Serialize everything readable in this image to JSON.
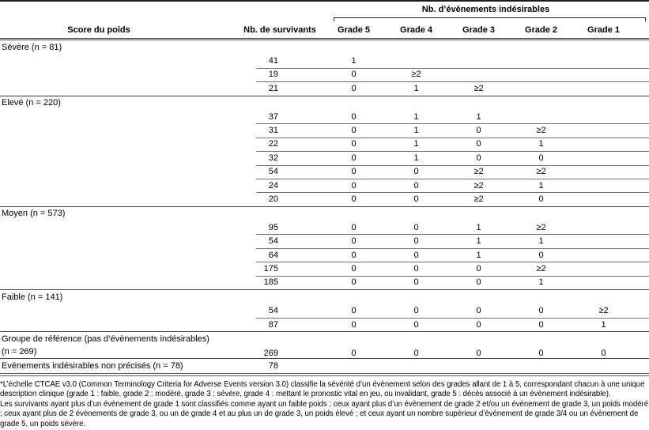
{
  "table": {
    "spanner_title": "Nb. d’évènements indésirables",
    "columns": {
      "score": "Score du poids",
      "survivors": "Nb. de survivants",
      "grades": [
        "Grade 5",
        "Grade 4",
        "Grade 3",
        "Grade 2",
        "Grade 1"
      ]
    },
    "sections": [
      {
        "label": "Sévère (n = 81)",
        "rows": [
          {
            "survivors": "41",
            "grades": [
              "1",
              "",
              "",
              "",
              ""
            ]
          },
          {
            "survivors": "19",
            "grades": [
              "0",
              "≥2",
              "",
              "",
              ""
            ]
          },
          {
            "survivors": "21",
            "grades": [
              "0",
              "1",
              "≥2",
              "",
              ""
            ]
          }
        ]
      },
      {
        "label": "Elevé (n = 220)",
        "rows": [
          {
            "survivors": "37",
            "grades": [
              "0",
              "1",
              "1",
              "",
              ""
            ]
          },
          {
            "survivors": "31",
            "grades": [
              "0",
              "1",
              "0",
              "≥2",
              ""
            ]
          },
          {
            "survivors": "22",
            "grades": [
              "0",
              "1",
              "0",
              "1",
              ""
            ]
          },
          {
            "survivors": "32",
            "grades": [
              "0",
              "1",
              "0",
              "0",
              ""
            ]
          },
          {
            "survivors": "54",
            "grades": [
              "0",
              "0",
              "≥2",
              "≥2",
              ""
            ]
          },
          {
            "survivors": "24",
            "grades": [
              "0",
              "0",
              "≥2",
              "1",
              ""
            ]
          },
          {
            "survivors": "20",
            "grades": [
              "0",
              "0",
              "≥2",
              "0",
              ""
            ]
          }
        ]
      },
      {
        "label": "Moyen (n = 573)",
        "rows": [
          {
            "survivors": "95",
            "grades": [
              "0",
              "0",
              "1",
              "≥2",
              ""
            ]
          },
          {
            "survivors": "54",
            "grades": [
              "0",
              "0",
              "1",
              "1",
              ""
            ]
          },
          {
            "survivors": "64",
            "grades": [
              "0",
              "0",
              "1",
              "0",
              ""
            ]
          },
          {
            "survivors": "175",
            "grades": [
              "0",
              "0",
              "0",
              "≥2",
              ""
            ]
          },
          {
            "survivors": "185",
            "grades": [
              "0",
              "0",
              "0",
              "1",
              ""
            ]
          }
        ]
      },
      {
        "label": "Faible (n = 141)",
        "rows": [
          {
            "survivors": "54",
            "grades": [
              "0",
              "0",
              "0",
              "0",
              "≥2"
            ]
          },
          {
            "survivors": "87",
            "grades": [
              "0",
              "0",
              "0",
              "0",
              "1"
            ]
          }
        ]
      }
    ],
    "summary_rows": [
      {
        "label": "Groupe de référence (pas d’évènements indésirables)",
        "label_line2": "(n = 269)",
        "survivors": "269",
        "grades": [
          "0",
          "0",
          "0",
          "0",
          "0"
        ]
      },
      {
        "label": "Evènements indésirables non précisés (n = 78)",
        "label_line2": "",
        "survivors": "78",
        "grades": [
          "",
          "",
          "",
          "",
          ""
        ]
      }
    ]
  },
  "footnotes": [
    "*L’échelle CTCAE v3.0 (Common Terminology Criteria for Adverse Events version 3.0) classifie la sévérité d’un évènement selon des grades allant de 1 à 5, correspondant chacun à une unique description clinique (grade 1 : faible, grade 2 : modéré, grade 3 : sévère, grade 4 : mettant le pronostic vital en jeu, ou invalidant, grade 5 : décès associé à un évènement indésirable).",
    "Les survivants ayant plus d’un évènement de grade 1 sont classifiés comme ayant un faible poids ; ceux ayant plus d’un évènement de grade 2 et/ou un évènement de grade 3, un poids modéré ; ceux ayant plus de 2 évènements de grade 3, ou un de grade 4 et au plus un de grade 3, un poids élevé ; et ceux ayant un nombre supérieur d’évènement de grade 3/4 ou un évènement de grade 5, un poids sévère."
  ]
}
